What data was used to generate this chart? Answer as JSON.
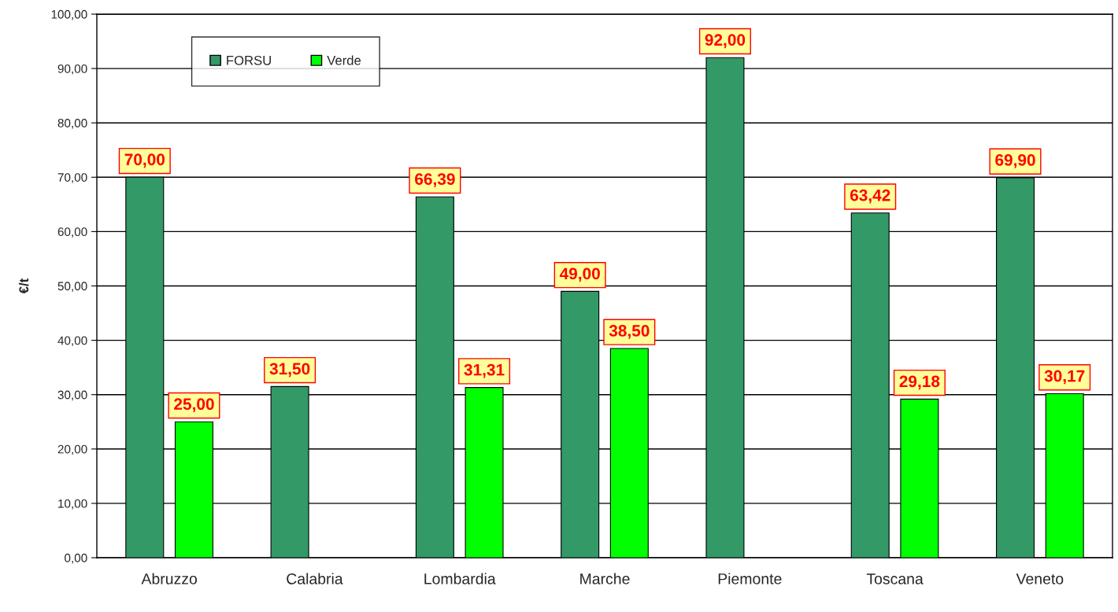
{
  "chart_data": {
    "type": "bar",
    "ylabel": "€/t",
    "categories": [
      "Abruzzo",
      "Calabria",
      "Lombardia",
      "Marche",
      "Piemonte",
      "Toscana",
      "Veneto"
    ],
    "series": [
      {
        "name": "FORSU",
        "color": "#339966",
        "values": [
          70.0,
          31.5,
          66.39,
          49.0,
          92.0,
          63.42,
          69.9
        ],
        "value_labels": [
          "70,00",
          "31,50",
          "66,39",
          "49,00",
          "92,00",
          "63,42",
          "69,90"
        ]
      },
      {
        "name": "Verde",
        "color": "#00ff00",
        "values": [
          25.0,
          null,
          31.31,
          38.5,
          null,
          29.18,
          30.17
        ],
        "value_labels": [
          "25,00",
          null,
          "31,31",
          "38,50",
          null,
          "29,18",
          "30,17"
        ]
      }
    ],
    "ylim": [
      0,
      100
    ],
    "yticks": [
      {
        "value": 0,
        "label": "0,00"
      },
      {
        "value": 10,
        "label": "10,00"
      },
      {
        "value": 20,
        "label": "20,00"
      },
      {
        "value": 30,
        "label": "30,00"
      },
      {
        "value": 40,
        "label": "40,00"
      },
      {
        "value": 50,
        "label": "50,00"
      },
      {
        "value": 60,
        "label": "60,00"
      },
      {
        "value": 70,
        "label": "70,00"
      },
      {
        "value": 80,
        "label": "80,00"
      },
      {
        "value": 90,
        "label": "90,00"
      },
      {
        "value": 100,
        "label": "100,00"
      }
    ],
    "grid": "y",
    "legend": "top left"
  }
}
